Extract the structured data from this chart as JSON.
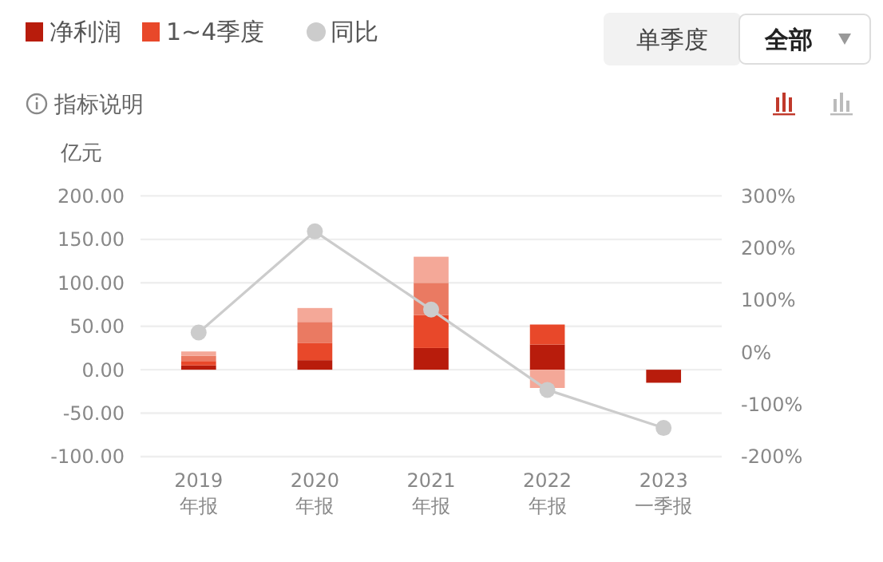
{
  "chart_data": {
    "type": "bar",
    "stacked": true,
    "ylabel": "亿元",
    "categories": [
      "2019\n年报",
      "2020\n年报",
      "2021\n年报",
      "2022\n年报",
      "2023\n一季报"
    ],
    "series": [
      {
        "name": "净利润",
        "color": "#b81c0c",
        "values": [
          5,
          11,
          25,
          29,
          -15
        ]
      },
      {
        "name": "1~4季度",
        "color": "#e8482a",
        "values": [
          5,
          20,
          38,
          23,
          null
        ]
      },
      {
        "color": "#ea7a62",
        "values": [
          6,
          24,
          37,
          null,
          null
        ]
      },
      {
        "color": "#f4a898",
        "values": [
          5,
          16,
          30,
          -21,
          null
        ]
      },
      {
        "name": "同比",
        "type": "line",
        "axis": "y2",
        "color": "#cccccc",
        "marker": "circle",
        "values": [
          38,
          232,
          82,
          -72,
          -145
        ]
      }
    ],
    "ylim": [
      -100,
      200
    ],
    "yticks": [
      {
        "value": -100,
        "label": "-100.00"
      },
      {
        "value": -50,
        "label": "-50.00"
      },
      {
        "value": 0,
        "label": "0.00"
      },
      {
        "value": 50,
        "label": "50.00"
      },
      {
        "value": 100,
        "label": "100.00"
      },
      {
        "value": 150,
        "label": "150.00"
      },
      {
        "value": 200,
        "label": "200.00"
      }
    ],
    "y2lim": [
      -200,
      300
    ],
    "y2ticks": [
      {
        "value": -200,
        "label": "-200%"
      },
      {
        "value": -100,
        "label": "-100%"
      },
      {
        "value": 0,
        "label": "0%"
      },
      {
        "value": 100,
        "label": "100%"
      },
      {
        "value": 200,
        "label": "200%"
      },
      {
        "value": 300,
        "label": "300%"
      }
    ],
    "grid": "y",
    "legend": "top left",
    "annotations": [
      "单季度",
      "全部",
      "指标说明"
    ]
  }
}
